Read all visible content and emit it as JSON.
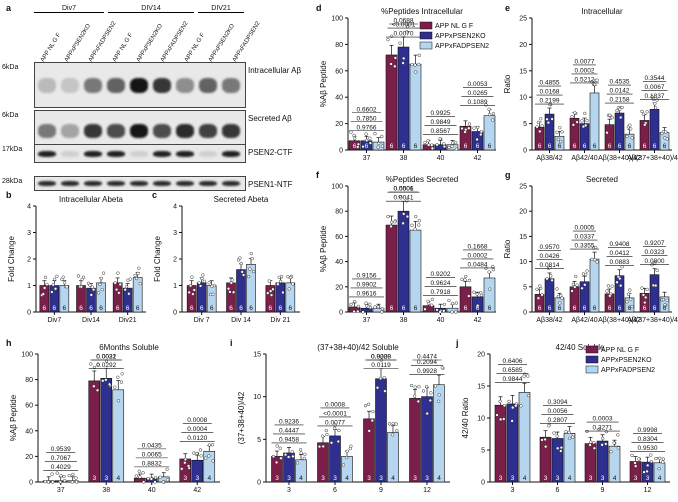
{
  "panel_letters": [
    "a",
    "b",
    "c",
    "d",
    "e",
    "f",
    "g",
    "h",
    "i",
    "j"
  ],
  "colors": {
    "c1": "#7a1f4a",
    "c2": "#2e2f8f",
    "c3": "#b6d6ef"
  },
  "blot": {
    "groups": [
      "Div7",
      "DIV14",
      "DIV21"
    ],
    "lanes": [
      "APP NL G F",
      "APPxPSEN2KO",
      "APPxFADPSEN2",
      "APP NL G F",
      "APPxPSEN2KO",
      "APPxFADPSEN2",
      "APP NL G F",
      "APPxPSEN2KO",
      "APPxFADPSEN2"
    ],
    "rows": [
      {
        "marker": "6kDa",
        "label": "Intracellular Aβ"
      },
      {
        "marker": "6kDa",
        "label": "Secreted Aβ"
      },
      {
        "marker": "17kDa",
        "label": "PSEN2-CTF"
      },
      {
        "marker": "28kDa",
        "label": "PSEN1-NTF"
      }
    ],
    "intensities": [
      [
        0.2,
        0.15,
        0.5,
        0.6,
        0.95,
        0.8,
        0.4,
        0.6,
        0.5
      ],
      [
        0.5,
        0.3,
        0.8,
        0.7,
        0.95,
        0.7,
        0.85,
        0.75,
        0.8
      ],
      [
        0.9,
        0.1,
        0.9,
        0.9,
        0.1,
        0.9,
        0.9,
        0.1,
        0.9
      ],
      [
        0.85,
        0.85,
        0.85,
        0.85,
        0.85,
        0.85,
        0.85,
        0.85,
        0.85
      ]
    ]
  },
  "chart_data": [
    {
      "id": "b",
      "type": "bar",
      "title": "Intracellular Abeta",
      "ylabel": "Fold Change",
      "categories": [
        "Div7",
        "Div14",
        "Div21"
      ],
      "ylim": [
        0,
        4
      ],
      "yticks": [
        0,
        1,
        2,
        3,
        4
      ],
      "series": [
        {
          "values": [
            1.0,
            1.0,
            1.1
          ]
        },
        {
          "values": [
            1.0,
            0.9,
            0.9
          ]
        },
        {
          "values": [
            1.0,
            1.1,
            1.3
          ]
        }
      ],
      "n": [
        "6",
        "6",
        "6"
      ]
    },
    {
      "id": "c",
      "type": "bar",
      "title": "Secreted Abeta",
      "ylabel": "Fold Change",
      "categories": [
        "Div 7",
        "Div 14",
        "Div 21"
      ],
      "ylim": [
        0,
        4
      ],
      "yticks": [
        0,
        1,
        2,
        3,
        4
      ],
      "series": [
        {
          "values": [
            1.0,
            1.1,
            1.0
          ]
        },
        {
          "values": [
            1.1,
            1.6,
            1.1
          ]
        },
        {
          "values": [
            1.0,
            1.8,
            1.1
          ]
        }
      ],
      "n": [
        "6",
        "6",
        "6"
      ]
    },
    {
      "id": "d",
      "type": "bar",
      "title": "%Peptides Intracellular",
      "ylabel": "%Aβ Peptide",
      "categories": [
        "37",
        "38",
        "40",
        "42"
      ],
      "ylim": [
        0,
        100
      ],
      "yticks": [
        0,
        20,
        40,
        60,
        80,
        100
      ],
      "series": [
        {
          "name": "APP NL G F",
          "values": [
            7,
            72,
            4,
            18
          ]
        },
        {
          "name": "APPxPSEN2KO",
          "values": [
            7,
            78,
            4,
            14
          ]
        },
        {
          "name": "APPxFADPSEN2",
          "values": [
            6,
            65,
            4,
            26
          ]
        }
      ],
      "n": [
        "6",
        "6",
        "6"
      ],
      "pvalues": [
        {
          "cat": 0,
          "labels": [
            "0.6602",
            "0.7850",
            "0.9766"
          ]
        },
        {
          "cat": 1,
          "labels": [
            "0.0688",
            "<0.0001",
            "0.0070"
          ]
        },
        {
          "cat": 2,
          "labels": [
            "0.9925",
            "0.9849",
            "0.8567"
          ]
        },
        {
          "cat": 3,
          "labels": [
            "0.0053",
            "0.0265",
            "0.1089"
          ]
        }
      ]
    },
    {
      "id": "e",
      "type": "bar",
      "title": "Intracellular",
      "ylabel": "Ratio",
      "categories": [
        "Aβ38/42",
        "Aβ42/40",
        "Aβ(38+40)/42",
        "Aβ(37+38+40)/42"
      ],
      "ylim": [
        0,
        25
      ],
      "yticks": [
        0,
        5,
        10,
        15,
        20,
        25
      ],
      "series": [
        {
          "values": [
            4.3,
            6.0,
            4.8,
            5.6
          ]
        },
        {
          "values": [
            6.8,
            5.0,
            7.0,
            7.7
          ]
        },
        {
          "values": [
            2.6,
            10.8,
            3.0,
            3.3
          ]
        }
      ],
      "n": [
        "6",
        "6",
        "6"
      ],
      "pvalues": [
        {
          "cat": 0,
          "labels": [
            "0.4855",
            "0.0168",
            "0.2199"
          ]
        },
        {
          "cat": 1,
          "labels": [
            "0.0077",
            "0.0002",
            "0.5212"
          ]
        },
        {
          "cat": 2,
          "labels": [
            "0.4535",
            "0.0142",
            "0.2158"
          ]
        },
        {
          "cat": 3,
          "labels": [
            "0.3544",
            "0.0067",
            "0.1837"
          ]
        }
      ]
    },
    {
      "id": "f",
      "type": "bar",
      "title": "%Peptides Secreted",
      "ylabel": "%Aβ Peptide",
      "categories": [
        "37",
        "38",
        "40",
        "42"
      ],
      "ylim": [
        0,
        100
      ],
      "yticks": [
        0,
        20,
        40,
        60,
        80,
        100
      ],
      "series": [
        {
          "values": [
            4,
            69,
            5,
            20
          ]
        },
        {
          "values": [
            3,
            80,
            3,
            12
          ]
        },
        {
          "values": [
            3,
            65,
            3,
            27
          ]
        }
      ],
      "n": [
        "6",
        "6",
        "6"
      ],
      "pvalues": [
        {
          "cat": 0,
          "labels": [
            "0.9156",
            "0.9902",
            "0.9616"
          ]
        },
        {
          "cat": 1,
          "labels": [
            "0.5506",
            "0.0001",
            "0.0041"
          ]
        },
        {
          "cat": 2,
          "labels": [
            "0.9202",
            "0.9624",
            "0.7918"
          ]
        },
        {
          "cat": 3,
          "labels": [
            "0.1668",
            "0.0002",
            "0.0484"
          ]
        }
      ]
    },
    {
      "id": "g",
      "type": "bar",
      "title": "Secreted",
      "ylabel": "Ratio",
      "categories": [
        "Aβ38/42",
        "Aβ42/40",
        "Aβ(38+40)/42",
        "Aβ(37+38+40)/42"
      ],
      "ylim": [
        0,
        25
      ],
      "yticks": [
        0,
        5,
        10,
        15,
        20,
        25
      ],
      "series": [
        {
          "values": [
            3.5,
            5.0,
            3.6,
            3.7
          ]
        },
        {
          "values": [
            6.6,
            6.0,
            7.2,
            7.4
          ]
        },
        {
          "values": [
            2.8,
            10.5,
            2.8,
            3.0
          ]
        }
      ],
      "n": [
        "6",
        "6",
        "6"
      ],
      "pvalues": [
        {
          "cat": 0,
          "labels": [
            "0.9570",
            "0.0426",
            "0.0814"
          ]
        },
        {
          "cat": 1,
          "labels": [
            "0.0005",
            "0.0337",
            "0.3355"
          ]
        },
        {
          "cat": 2,
          "labels": [
            "0.9408",
            "0.0412",
            "0.0883"
          ]
        },
        {
          "cat": 3,
          "labels": [
            "0.9207",
            "0.0323",
            "0.0800"
          ]
        }
      ]
    },
    {
      "id": "h",
      "type": "bar",
      "title": "6Months Soluble",
      "ylabel": "%Aβ Peptide",
      "categories": [
        "37",
        "38",
        "40",
        "42"
      ],
      "ylim": [
        0,
        100
      ],
      "yticks": [
        0,
        20,
        40,
        60,
        80,
        100
      ],
      "series": [
        {
          "values": [
            1,
            79,
            3,
            18
          ]
        },
        {
          "values": [
            1,
            81,
            3,
            17
          ]
        },
        {
          "values": [
            1,
            72,
            4,
            24
          ]
        }
      ],
      "n": [
        "3",
        "3",
        "4"
      ],
      "pvalues": [
        {
          "cat": 0,
          "labels": [
            "0.9539",
            "0.7067",
            "0.4029"
          ]
        },
        {
          "cat": 1,
          "labels": [
            "0.0031",
            "0.0022",
            "0.0292"
          ]
        },
        {
          "cat": 2,
          "labels": [
            "0.0435",
            "0.0065",
            "0.8832"
          ]
        },
        {
          "cat": 3,
          "labels": [
            "0.0008",
            "0.0004",
            "0.0120"
          ]
        }
      ]
    },
    {
      "id": "i",
      "type": "bar",
      "title": "(37+38+40)/42 Soluble",
      "ylabel": "(37+38+40)/42",
      "categories": [
        "3",
        "6",
        "9",
        "12"
      ],
      "ylim": [
        0,
        15
      ],
      "yticks": [
        0,
        5,
        10,
        15
      ],
      "series": [
        {
          "values": [
            3.0,
            4.6,
            7.4,
            9.8
          ]
        },
        {
          "values": [
            3.4,
            5.4,
            12.1,
            10.0
          ]
        },
        {
          "values": [
            2.6,
            3.0,
            5.8,
            11.4
          ]
        }
      ],
      "n": [
        "3",
        "3",
        "4"
      ],
      "pvalues": [
        {
          "cat": 0,
          "labels": [
            "0.9236",
            "0.4447",
            "0.9458"
          ]
        },
        {
          "cat": 1,
          "labels": [
            "0.0008",
            "<0.0001",
            "0.0077"
          ]
        },
        {
          "cat": 2,
          "labels": [
            "0.9300",
            "0.0028",
            "0.0119"
          ]
        },
        {
          "cat": 3,
          "labels": [
            "0.4474",
            "0.2094",
            "0.9928"
          ]
        }
      ]
    },
    {
      "id": "j",
      "type": "bar",
      "title": "42/40 Soluble",
      "ylabel": "42/40 Ratio",
      "categories": [
        "3",
        "6",
        "9",
        "12"
      ],
      "ylim": [
        0,
        20
      ],
      "yticks": [
        0,
        5,
        10,
        15,
        20
      ],
      "series": [
        {
          "name": "APP NL G F",
          "values": [
            12,
            7,
            6,
            3.2
          ]
        },
        {
          "name": "APPxPSEN2KO",
          "values": [
            12.2,
            6.8,
            6.4,
            3.1
          ]
        },
        {
          "name": "APPxFADPSEN2",
          "values": [
            14,
            7.6,
            5.6,
            3.0
          ]
        }
      ],
      "n": [
        "3",
        "3",
        "4"
      ],
      "pvalues": [
        {
          "cat": 0,
          "labels": [
            "0.6406",
            "0.6585",
            "0.9844"
          ]
        },
        {
          "cat": 1,
          "labels": [
            "0.3094",
            "0.0056",
            "0.2807"
          ]
        },
        {
          "cat": 2,
          "labels": [
            "0.0003",
            "0.3271"
          ]
        },
        {
          "cat": 3,
          "labels": [
            "0.9998",
            "0.8304",
            "0.9530"
          ]
        }
      ]
    }
  ]
}
